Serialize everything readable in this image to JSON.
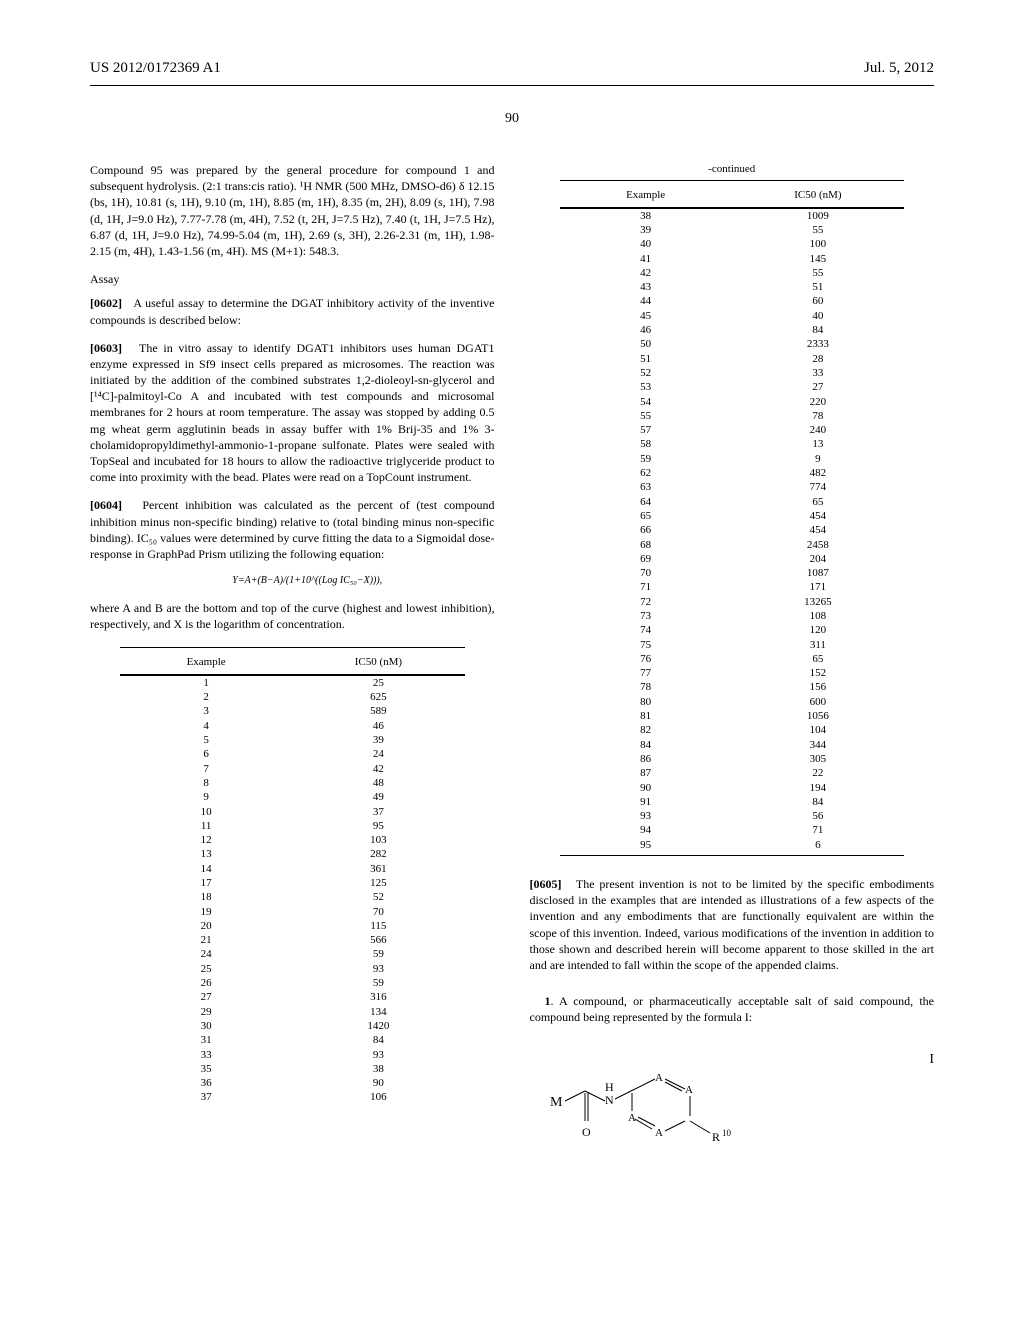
{
  "header": {
    "left": "US 2012/0172369 A1",
    "right": "Jul. 5, 2012"
  },
  "pageNumber": "90",
  "leftColumn": {
    "compound95Text": "Compound 95 was prepared by the general procedure for compound 1 and subsequent hydrolysis. (2:1 trans:cis ratio).",
    "nmrText": "¹H NMR (500 MHz, DMSO-d6) δ 12.15 (bs, 1H), 10.81 (s, 1H), 9.10 (m, 1H), 8.85 (m, 1H), 8.35 (m, 2H), 8.09 (s, 1H), 7.98 (d, 1H, J=9.0 Hz), 7.77-7.78 (m, 4H), 7.52 (t, 2H, J=7.5 Hz), 7.40 (t, 1H, J=7.5 Hz), 6.87 (d, 1H, J=9.0 Hz), 74.99-5.04 (m, 1H), 2.69 (s, 3H), 2.26-2.31 (m, 1H), 1.98-2.15 (m, 4H), 1.43-1.56 (m, 4H). MS (M+1): 548.3.",
    "assayHeading": "Assay",
    "para0602": "A useful assay to determine the DGAT inhibitory activity of the inventive compounds is described below:",
    "para0603": "The in vitro assay to identify DGAT1 inhibitors uses human DGAT1 enzyme expressed in Sf9 insect cells prepared as microsomes. The reaction was initiated by the addition of the combined substrates 1,2-dioleoyl-sn-glycerol and [¹⁴C]-palmitoyl-Co A and incubated with test compounds and microsomal membranes for 2 hours at room temperature. The assay was stopped by adding 0.5 mg wheat germ agglutinin beads in assay buffer with 1% Brij-35 and 1% 3-cholamidopropyldimethyl-ammonio-1-propane sulfonate. Plates were sealed with TopSeal and incubated for 18 hours to allow the radioactive triglyceride product to come into proximity with the bead. Plates were read on a TopCount instrument.",
    "para0604": "Percent inhibition was calculated as the percent of (test compound inhibition minus non-specific binding) relative to (total binding minus non-specific binding). IC₅₀ values were determined by curve fitting the data to a Sigmoidal dose-response in GraphPad Prism utilizing the following equation:",
    "equation": "Y=A+(B−A)/(1+10^((Log IC₅₀−X))),",
    "equationNote": "where A and B are the bottom and top of the curve (highest and lowest inhibition), respectively, and X is the logarithm of concentration.",
    "tableHeaders": {
      "col1": "Example",
      "col2": "IC50 (nM)"
    },
    "tableRows": [
      [
        "1",
        "25"
      ],
      [
        "2",
        "625"
      ],
      [
        "3",
        "589"
      ],
      [
        "4",
        "46"
      ],
      [
        "5",
        "39"
      ],
      [
        "6",
        "24"
      ],
      [
        "7",
        "42"
      ],
      [
        "8",
        "48"
      ],
      [
        "9",
        "49"
      ],
      [
        "10",
        "37"
      ],
      [
        "11",
        "95"
      ],
      [
        "12",
        "103"
      ],
      [
        "13",
        "282"
      ],
      [
        "14",
        "361"
      ],
      [
        "17",
        "125"
      ],
      [
        "18",
        "52"
      ],
      [
        "19",
        "70"
      ],
      [
        "20",
        "115"
      ],
      [
        "21",
        "566"
      ],
      [
        "24",
        "59"
      ],
      [
        "25",
        "93"
      ],
      [
        "26",
        "59"
      ],
      [
        "27",
        "316"
      ],
      [
        "29",
        "134"
      ],
      [
        "30",
        "1420"
      ],
      [
        "31",
        "84"
      ],
      [
        "33",
        "93"
      ],
      [
        "35",
        "38"
      ],
      [
        "36",
        "90"
      ],
      [
        "37",
        "106"
      ]
    ]
  },
  "rightColumn": {
    "continuedLabel": "-continued",
    "tableHeaders": {
      "col1": "Example",
      "col2": "IC50 (nM)"
    },
    "tableRows": [
      [
        "38",
        "1009"
      ],
      [
        "39",
        "55"
      ],
      [
        "40",
        "100"
      ],
      [
        "41",
        "145"
      ],
      [
        "42",
        "55"
      ],
      [
        "43",
        "51"
      ],
      [
        "44",
        "60"
      ],
      [
        "45",
        "40"
      ],
      [
        "46",
        "84"
      ],
      [
        "50",
        "2333"
      ],
      [
        "51",
        "28"
      ],
      [
        "52",
        "33"
      ],
      [
        "53",
        "27"
      ],
      [
        "54",
        "220"
      ],
      [
        "55",
        "78"
      ],
      [
        "57",
        "240"
      ],
      [
        "58",
        "13"
      ],
      [
        "59",
        "9"
      ],
      [
        "62",
        "482"
      ],
      [
        "63",
        "774"
      ],
      [
        "64",
        "65"
      ],
      [
        "65",
        "454"
      ],
      [
        "66",
        "454"
      ],
      [
        "68",
        "2458"
      ],
      [
        "69",
        "204"
      ],
      [
        "70",
        "1087"
      ],
      [
        "71",
        "171"
      ],
      [
        "72",
        "13265"
      ],
      [
        "73",
        "108"
      ],
      [
        "74",
        "120"
      ],
      [
        "75",
        "311"
      ],
      [
        "76",
        "65"
      ],
      [
        "77",
        "152"
      ],
      [
        "78",
        "156"
      ],
      [
        "80",
        "600"
      ],
      [
        "81",
        "1056"
      ],
      [
        "82",
        "104"
      ],
      [
        "84",
        "344"
      ],
      [
        "86",
        "305"
      ],
      [
        "87",
        "22"
      ],
      [
        "90",
        "194"
      ],
      [
        "91",
        "84"
      ],
      [
        "93",
        "56"
      ],
      [
        "94",
        "71"
      ],
      [
        "95",
        "6"
      ]
    ],
    "para0605": "The present invention is not to be limited by the specific embodiments disclosed in the examples that are intended as illustrations of a few aspects of the invention and any embodiments that are functionally equivalent are within the scope of this invention. Indeed, various modifications of the invention in addition to those shown and described herein will become apparent to those skilled in the art and are intended to fall within the scope of the appended claims.",
    "claim1": "1. A compound, or pharmaceutically acceptable salt of said compound, the compound being represented by the formula I:",
    "formulaLabel": "I"
  }
}
